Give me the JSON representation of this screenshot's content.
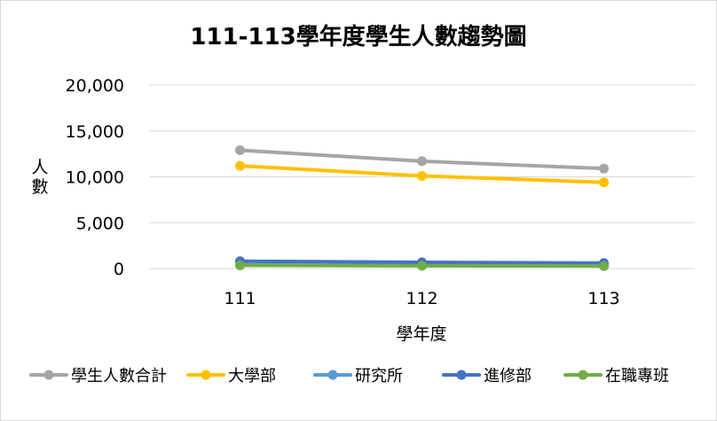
{
  "chart_data": {
    "type": "line",
    "title": "111-113學年度學生人數趨勢圖",
    "xlabel": "學年度",
    "ylabel": "人數",
    "categories": [
      "111",
      "112",
      "113"
    ],
    "ylim": [
      0,
      20000
    ],
    "yticks": [
      "20,000",
      "15,000",
      "10,000",
      "5,000",
      "0"
    ],
    "ytick_values": [
      20000,
      15000,
      10000,
      5000,
      0
    ],
    "grid": true,
    "legend_position": "bottom",
    "series": [
      {
        "name": "學生人數合計",
        "color": "#a5a5a5",
        "values": [
          12900,
          11700,
          10900
        ]
      },
      {
        "name": "大學部",
        "color": "#ffc000",
        "values": [
          11200,
          10100,
          9400
        ]
      },
      {
        "name": "研究所",
        "color": "#5b9bd5",
        "values": [
          400,
          330,
          290
        ]
      },
      {
        "name": "進修部",
        "color": "#4472c4",
        "values": [
          800,
          680,
          600
        ]
      },
      {
        "name": "在職專班",
        "color": "#70ad47",
        "values": [
          350,
          300,
          280
        ]
      }
    ]
  }
}
